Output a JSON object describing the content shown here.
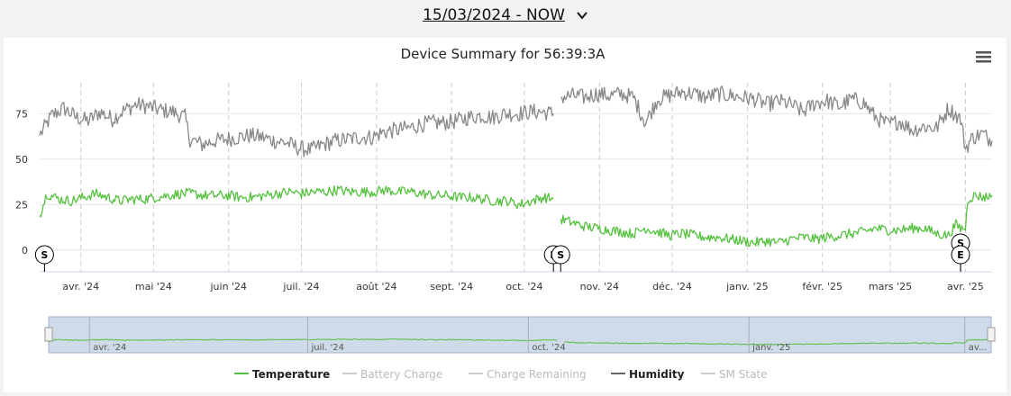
{
  "header": {
    "date_range": "15/03/2024 - NOW",
    "chevron_icon": "chevron-down-icon"
  },
  "chart": {
    "title": "Device Summary for 56:39:3A",
    "menu_icon": "hamburger-menu-icon"
  },
  "chart_data": {
    "type": "line",
    "x_axis": {
      "type": "date",
      "tick_labels": [
        "avr. '24",
        "mai '24",
        "juin '24",
        "juil. '24",
        "août '24",
        "sept. '24",
        "oct. '24",
        "nov. '24",
        "déc. '24",
        "janv. '25",
        "févr. '25",
        "mars '25",
        "avr. '25"
      ],
      "tick_dates": [
        "2024-04-01",
        "2024-05-01",
        "2024-06-01",
        "2024-07-01",
        "2024-08-01",
        "2024-09-01",
        "2024-10-01",
        "2024-11-01",
        "2024-12-01",
        "2025-01-01",
        "2025-02-01",
        "2025-03-01",
        "2025-04-01"
      ],
      "range": [
        "2024-03-15",
        "2025-04-12"
      ]
    },
    "y_axis": {
      "tick_labels": [
        "0",
        "25",
        "50",
        "75"
      ],
      "ticks": [
        0,
        25,
        50,
        75
      ],
      "range": [
        -12,
        92
      ]
    },
    "grid": true,
    "legend_position": "bottom",
    "gap": [
      "2024-10-13",
      "2024-10-16"
    ],
    "series": [
      {
        "name": "Humidity",
        "color": "#888888",
        "visible": true,
        "points": [
          [
            "2024-03-15",
            63
          ],
          [
            "2024-03-20",
            74
          ],
          [
            "2024-03-25",
            78
          ],
          [
            "2024-03-30",
            73
          ],
          [
            "2024-04-04",
            71
          ],
          [
            "2024-04-09",
            76
          ],
          [
            "2024-04-14",
            72
          ],
          [
            "2024-04-19",
            77
          ],
          [
            "2024-04-24",
            80
          ],
          [
            "2024-04-29",
            79
          ],
          [
            "2024-05-04",
            77
          ],
          [
            "2024-05-09",
            76
          ],
          [
            "2024-05-14",
            73
          ],
          [
            "2024-05-16",
            61
          ],
          [
            "2024-05-21",
            58
          ],
          [
            "2024-05-26",
            60
          ],
          [
            "2024-05-31",
            61
          ],
          [
            "2024-06-05",
            62
          ],
          [
            "2024-06-10",
            63
          ],
          [
            "2024-06-15",
            62
          ],
          [
            "2024-06-20",
            60
          ],
          [
            "2024-06-25",
            59
          ],
          [
            "2024-06-30",
            56
          ],
          [
            "2024-07-05",
            55
          ],
          [
            "2024-07-10",
            58
          ],
          [
            "2024-07-15",
            60
          ],
          [
            "2024-07-20",
            61
          ],
          [
            "2024-07-25",
            62
          ],
          [
            "2024-07-30",
            62
          ],
          [
            "2024-08-04",
            65
          ],
          [
            "2024-08-09",
            66
          ],
          [
            "2024-08-14",
            67
          ],
          [
            "2024-08-19",
            69
          ],
          [
            "2024-08-24",
            70
          ],
          [
            "2024-08-29",
            70
          ],
          [
            "2024-09-03",
            71
          ],
          [
            "2024-09-08",
            73
          ],
          [
            "2024-09-13",
            74
          ],
          [
            "2024-09-18",
            73
          ],
          [
            "2024-09-23",
            75
          ],
          [
            "2024-09-28",
            75
          ],
          [
            "2024-10-03",
            76
          ],
          [
            "2024-10-08",
            76
          ],
          [
            "2024-10-13",
            75
          ],
          null,
          [
            "2024-10-16",
            84
          ],
          [
            "2024-10-21",
            85
          ],
          [
            "2024-10-26",
            84
          ],
          [
            "2024-10-31",
            86
          ],
          [
            "2024-11-05",
            85
          ],
          [
            "2024-11-10",
            86
          ],
          [
            "2024-11-15",
            84
          ],
          [
            "2024-11-20",
            70
          ],
          [
            "2024-11-25",
            83
          ],
          [
            "2024-11-30",
            85
          ],
          [
            "2024-12-05",
            87
          ],
          [
            "2024-12-10",
            86
          ],
          [
            "2024-12-15",
            84
          ],
          [
            "2024-12-20",
            86
          ],
          [
            "2024-12-25",
            85
          ],
          [
            "2024-12-30",
            84
          ],
          [
            "2025-01-04",
            83
          ],
          [
            "2025-01-09",
            80
          ],
          [
            "2025-01-14",
            82
          ],
          [
            "2025-01-19",
            80
          ],
          [
            "2025-01-24",
            76
          ],
          [
            "2025-01-29",
            81
          ],
          [
            "2025-02-03",
            82
          ],
          [
            "2025-02-08",
            79
          ],
          [
            "2025-02-13",
            83
          ],
          [
            "2025-02-18",
            81
          ],
          [
            "2025-02-23",
            73
          ],
          [
            "2025-02-28",
            69
          ],
          [
            "2025-03-05",
            71
          ],
          [
            "2025-03-10",
            66
          ],
          [
            "2025-03-15",
            68
          ],
          [
            "2025-03-20",
            67
          ],
          [
            "2025-03-25",
            78
          ],
          [
            "2025-03-30",
            72
          ],
          [
            "2025-04-01",
            56
          ],
          [
            "2025-04-04",
            62
          ],
          [
            "2025-04-08",
            64
          ],
          [
            "2025-04-12",
            60
          ]
        ]
      },
      {
        "name": "Temperature",
        "color": "#55c13f",
        "visible": true,
        "points": [
          [
            "2024-03-15",
            19
          ],
          [
            "2024-03-18",
            31
          ],
          [
            "2024-03-23",
            28
          ],
          [
            "2024-03-28",
            27
          ],
          [
            "2024-04-02",
            29
          ],
          [
            "2024-04-07",
            31
          ],
          [
            "2024-04-12",
            29
          ],
          [
            "2024-04-17",
            27
          ],
          [
            "2024-04-22",
            28
          ],
          [
            "2024-04-27",
            28
          ],
          [
            "2024-05-02",
            29
          ],
          [
            "2024-05-07",
            30
          ],
          [
            "2024-05-12",
            31
          ],
          [
            "2024-05-17",
            31
          ],
          [
            "2024-05-22",
            30
          ],
          [
            "2024-05-27",
            30
          ],
          [
            "2024-06-01",
            30
          ],
          [
            "2024-06-06",
            29
          ],
          [
            "2024-06-11",
            29
          ],
          [
            "2024-06-16",
            30
          ],
          [
            "2024-06-21",
            31
          ],
          [
            "2024-06-26",
            32
          ],
          [
            "2024-07-01",
            31
          ],
          [
            "2024-07-06",
            32
          ],
          [
            "2024-07-11",
            32
          ],
          [
            "2024-07-16",
            33
          ],
          [
            "2024-07-21",
            32
          ],
          [
            "2024-07-26",
            32
          ],
          [
            "2024-07-31",
            32
          ],
          [
            "2024-08-05",
            33
          ],
          [
            "2024-08-10",
            32
          ],
          [
            "2024-08-15",
            32
          ],
          [
            "2024-08-20",
            31
          ],
          [
            "2024-08-25",
            30
          ],
          [
            "2024-08-30",
            30
          ],
          [
            "2024-09-04",
            29
          ],
          [
            "2024-09-09",
            29
          ],
          [
            "2024-09-14",
            28
          ],
          [
            "2024-09-19",
            27
          ],
          [
            "2024-09-24",
            27
          ],
          [
            "2024-09-29",
            25
          ],
          [
            "2024-10-04",
            27
          ],
          [
            "2024-10-09",
            29
          ],
          [
            "2024-10-13",
            28
          ],
          null,
          [
            "2024-10-16",
            17
          ],
          [
            "2024-10-21",
            15
          ],
          [
            "2024-10-26",
            13
          ],
          [
            "2024-10-31",
            12
          ],
          [
            "2024-11-05",
            11
          ],
          [
            "2024-11-10",
            10
          ],
          [
            "2024-11-15",
            9
          ],
          [
            "2024-11-20",
            12
          ],
          [
            "2024-11-25",
            10
          ],
          [
            "2024-11-30",
            8
          ],
          [
            "2024-12-05",
            9
          ],
          [
            "2024-12-10",
            8
          ],
          [
            "2024-12-15",
            7
          ],
          [
            "2024-12-20",
            7
          ],
          [
            "2024-12-25",
            6
          ],
          [
            "2024-12-30",
            5
          ],
          [
            "2025-01-04",
            4
          ],
          [
            "2025-01-09",
            5
          ],
          [
            "2025-01-14",
            4
          ],
          [
            "2025-01-19",
            6
          ],
          [
            "2025-01-24",
            7
          ],
          [
            "2025-01-29",
            6
          ],
          [
            "2025-02-03",
            7
          ],
          [
            "2025-02-08",
            8
          ],
          [
            "2025-02-13",
            9
          ],
          [
            "2025-02-18",
            10
          ],
          [
            "2025-02-23",
            12
          ],
          [
            "2025-02-28",
            11
          ],
          [
            "2025-03-05",
            11
          ],
          [
            "2025-03-10",
            12
          ],
          [
            "2025-03-15",
            12
          ],
          [
            "2025-03-20",
            9
          ],
          [
            "2025-03-25",
            8
          ],
          [
            "2025-03-28",
            14
          ],
          [
            "2025-03-30",
            12
          ],
          [
            "2025-04-01",
            12
          ],
          [
            "2025-04-02",
            28
          ],
          [
            "2025-04-05",
            30
          ],
          [
            "2025-04-09",
            29
          ],
          [
            "2025-04-12",
            30
          ]
        ]
      }
    ],
    "flags": [
      {
        "label": "S",
        "date": "2024-03-17",
        "stack": 0
      },
      {
        "label": "E",
        "date": "2024-10-13",
        "stack": 0
      },
      {
        "label": "S",
        "date": "2024-10-16",
        "stack": 0
      },
      {
        "label": "S",
        "date": "2025-03-30",
        "stack": 1
      },
      {
        "label": "E",
        "date": "2025-03-30",
        "stack": 0
      }
    ],
    "navigator": {
      "tick_labels": [
        "avr. '24",
        "juil. '24",
        "oct. '24",
        "janv. '25",
        "av..."
      ],
      "tick_dates": [
        "2024-04-01",
        "2024-07-01",
        "2024-10-01",
        "2025-01-01",
        "2025-04-01"
      ]
    },
    "legend": [
      {
        "name": "Temperature",
        "color": "#55c13f",
        "active": true
      },
      {
        "name": "Battery Charge",
        "color": "#cccccc",
        "active": false
      },
      {
        "name": "Charge Remaining",
        "color": "#cccccc",
        "active": false
      },
      {
        "name": "Humidity",
        "color": "#666666",
        "active": true
      },
      {
        "name": "SM State",
        "color": "#cccccc",
        "active": false
      }
    ]
  }
}
